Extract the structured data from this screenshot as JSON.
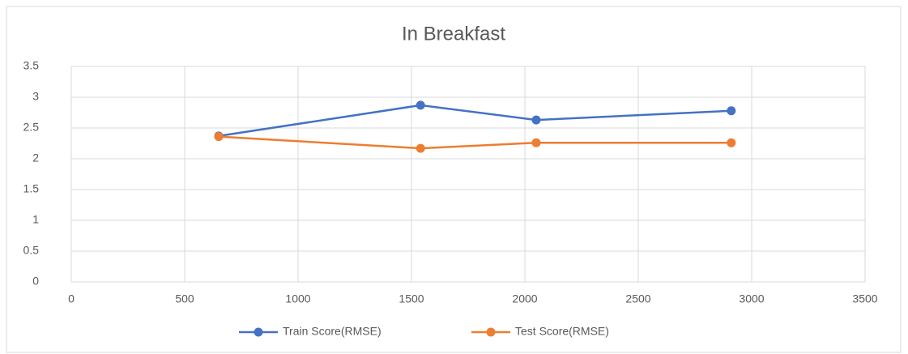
{
  "chart_data": {
    "type": "line",
    "title": "In Breakfast",
    "x": [
      650,
      1540,
      2050,
      2910
    ],
    "series": [
      {
        "name": "Train Score(RMSE)",
        "color": "#4472c4",
        "values": [
          2.37,
          2.87,
          2.63,
          2.78
        ]
      },
      {
        "name": "Test Score(RMSE)",
        "color": "#ed7d31",
        "values": [
          2.36,
          2.17,
          2.26,
          2.26
        ]
      }
    ],
    "xlim": [
      0,
      3500
    ],
    "xticks": [
      0,
      500,
      1000,
      1500,
      2000,
      2500,
      3000,
      3500
    ],
    "ylim": [
      0,
      3.5
    ],
    "yticks": [
      0,
      0.5,
      1,
      1.5,
      2,
      2.5,
      3,
      3.5
    ],
    "grid": true,
    "legend": "bottom"
  }
}
